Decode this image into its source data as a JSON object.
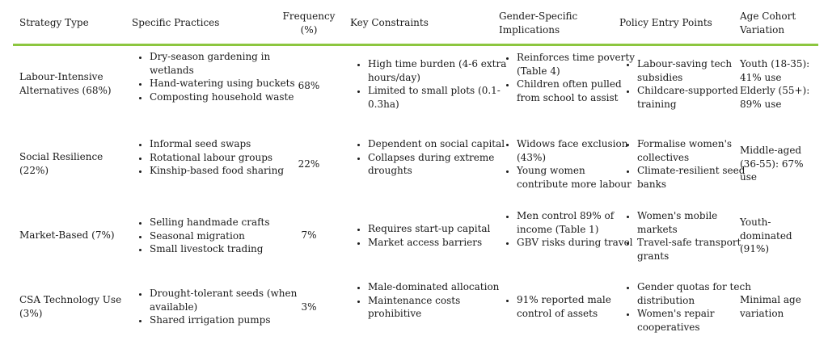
{
  "headers": {
    "strategy_type": "Strategy Type",
    "specific_practices": "Specific Practices",
    "frequency": "Frequency (%)",
    "key_constraints": "Key Constraints",
    "gender_implications": "Gender-Specific Implications",
    "policy_entry_points": "Policy Entry Points",
    "age_cohort": "Age Cohort Variation"
  },
  "rows": [
    {
      "strategy": "Labour-Intensive Alternatives (68%)",
      "practices": [
        "Dry-season gardening in wetlands",
        "Hand-watering using buckets",
        "Composting household waste"
      ],
      "frequency": "68%",
      "constraints": [
        "High time burden (4-6 extra hours/day)",
        "Limited to small plots (0.1-0.3ha)"
      ],
      "gender": [
        "Reinforces time poverty (Table 4)",
        "Children often pulled from school to assist"
      ],
      "policy": [
        "Labour-saving tech subsidies",
        "Childcare-supported training"
      ],
      "age": "Youth (18-35): 41% use Elderly (55+): 89% use"
    },
    {
      "strategy": "Social Resilience (22%)",
      "practices": [
        "Informal seed swaps",
        "Rotational labour groups",
        "Kinship-based food sharing"
      ],
      "frequency": "22%",
      "constraints": [
        "Dependent on social capital",
        "Collapses during extreme droughts"
      ],
      "gender": [
        "Widows face exclusion (43%)",
        "Young women contribute more labour"
      ],
      "policy": [
        "Formalise women's collectives",
        "Climate-resilient seed banks"
      ],
      "age": "Middle-aged (36-55): 67% use"
    },
    {
      "strategy": "Market-Based (7%)",
      "practices": [
        "Selling handmade crafts",
        "Seasonal migration",
        "Small livestock trading"
      ],
      "frequency": "7%",
      "constraints": [
        "Requires start-up capital",
        "Market access barriers"
      ],
      "gender": [
        "Men control 89% of income (Table 1)",
        "GBV risks during travel"
      ],
      "policy": [
        "Women's mobile markets",
        "Travel-safe transport grants"
      ],
      "age": "Youth-dominated (91%)"
    },
    {
      "strategy": "CSA Technology Use (3%)",
      "practices": [
        "Drought-tolerant seeds (when available)",
        "Shared irrigation pumps"
      ],
      "frequency": "3%",
      "constraints": [
        "Male-dominated allocation",
        "Maintenance costs prohibitive"
      ],
      "gender": [
        "91% reported male control of assets"
      ],
      "policy": [
        "Gender quotas for tech distribution",
        "Women's repair cooperatives"
      ],
      "age": "Minimal age variation"
    }
  ],
  "colors": {
    "header_rule": "#8cc63f",
    "text": "#1a1a1a"
  }
}
